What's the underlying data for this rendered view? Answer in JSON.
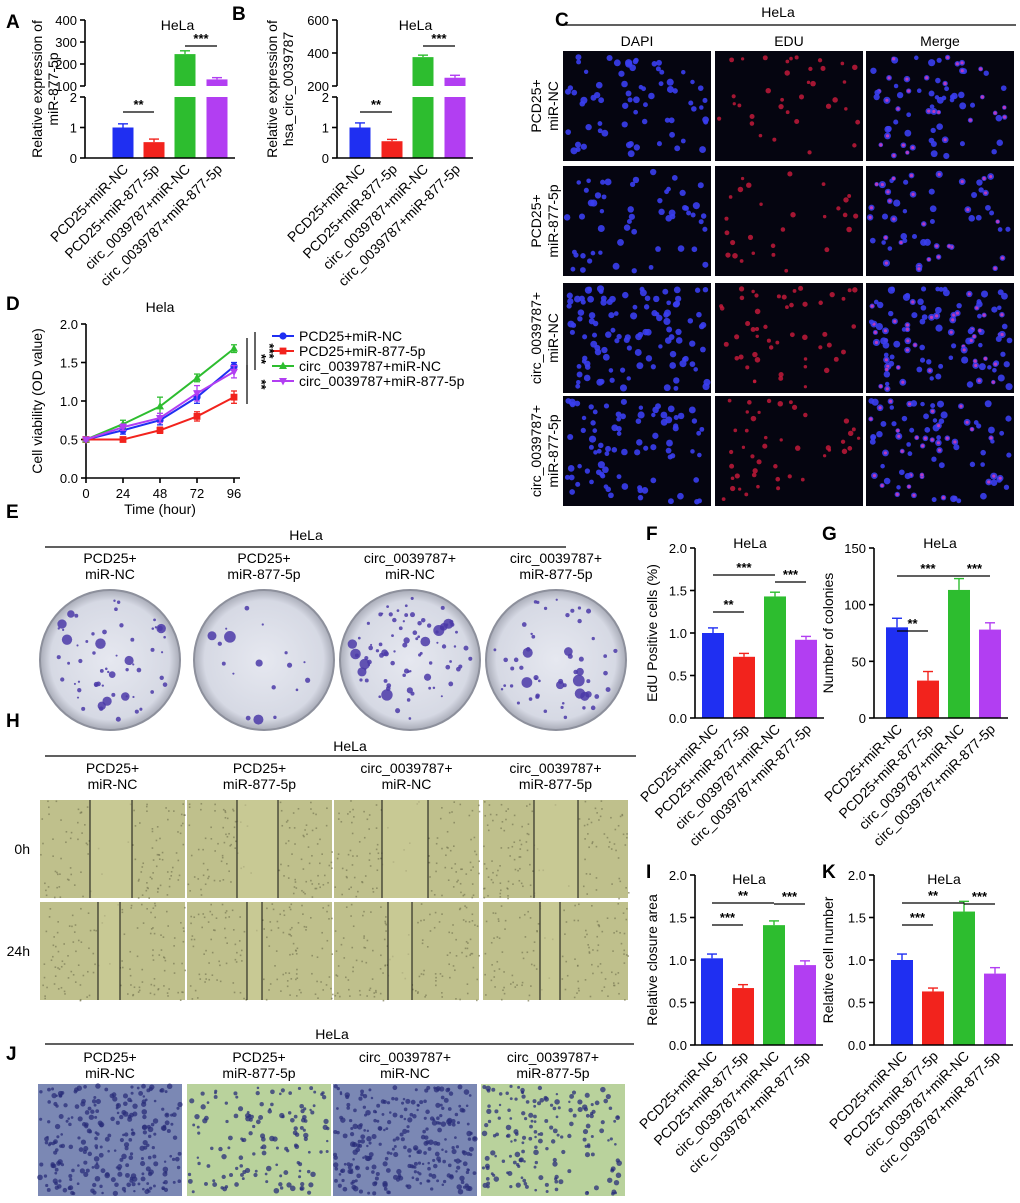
{
  "colors": {
    "blue": "#1f2ff2",
    "red": "#f2231d",
    "green": "#2dbd2f",
    "purple": "#b23ef2"
  },
  "groups": [
    "PCD25+miR-NC",
    "PCD25+miR-877-5p",
    "circ_0039787+miR-NC",
    "circ_0039787+miR-877-5p"
  ],
  "panel_labels": {
    "A": "A",
    "B": "B",
    "C": "C",
    "D": "D",
    "E": "E",
    "F": "F",
    "G": "G",
    "H": "H",
    "I": "I",
    "J": "J",
    "K": "K"
  },
  "images": {
    "C": {
      "title": "HeLa",
      "columns": [
        "DAPI",
        "EDU",
        "Merge"
      ],
      "rows": [
        "PCD25+\nmiR-NC",
        "PCD25+\nmiR-877-5p",
        "circ_0039787+\nmiR-NC",
        "circ_0039787+\nmiR-877-5p"
      ]
    },
    "E": {
      "title": "HeLa",
      "columns": [
        "PCD25+\nmiR-NC",
        "PCD25+\nmiR-877-5p",
        "circ_0039787+\nmiR-NC",
        "circ_0039787+\nmiR-877-5p"
      ]
    },
    "H": {
      "title": "HeLa",
      "columns": [
        "PCD25+\nmiR-NC",
        "PCD25+\nmiR-877-5p",
        "circ_0039787+\nmiR-NC",
        "circ_0039787+\nmiR-877-5p"
      ],
      "rows": [
        "0h",
        "24h"
      ]
    },
    "J": {
      "title": "HeLa",
      "columns": [
        "PCD25+\nmiR-NC",
        "PCD25+\nmiR-877-5p",
        "circ_0039787+\nmiR-NC",
        "circ_0039787+\nmiR-877-5p"
      ]
    }
  },
  "chart_data": [
    {
      "id": "A",
      "type": "bar",
      "title": "HeLa",
      "ylabel": "Relative expression of\nmiR-877-5p",
      "categories": [
        "PCD25+miR-NC",
        "PCD25+miR-877-5p",
        "circ_0039787+miR-NC",
        "circ_0039787+miR-877-5p"
      ],
      "values": [
        1.0,
        0.52,
        245,
        130
      ],
      "errors": [
        0.12,
        0.1,
        15,
        8
      ],
      "broken_axis": {
        "lower": [
          0,
          2
        ],
        "upper": [
          100,
          400
        ]
      },
      "yticks_lower": [
        "0",
        "1",
        "2"
      ],
      "yticks_upper": [
        "100",
        "200",
        "300",
        "400"
      ],
      "significance": [
        "**",
        "***"
      ]
    },
    {
      "id": "B",
      "type": "bar",
      "title": "HeLa",
      "ylabel": "Relative expression of\nhsa_circ_0039787",
      "categories": [
        "PCD25+miR-NC",
        "PCD25+miR-877-5p",
        "circ_0039787+miR-NC",
        "circ_0039787+miR-877-5p"
      ],
      "values": [
        1.0,
        0.55,
        375,
        250
      ],
      "errors": [
        0.15,
        0.06,
        12,
        15
      ],
      "broken_axis": {
        "lower": [
          0,
          2
        ],
        "upper": [
          200,
          600
        ]
      },
      "yticks_lower": [
        "0",
        "1",
        "2"
      ],
      "yticks_upper": [
        "200",
        "400",
        "600"
      ],
      "significance": [
        "**",
        "***"
      ]
    },
    {
      "id": "D",
      "type": "line",
      "title": "Hela",
      "xlabel": "Time (hour)",
      "ylabel": "Cell viability (OD value)",
      "x": [
        0,
        24,
        48,
        72,
        96
      ],
      "xticks": [
        "0",
        "24",
        "48",
        "72",
        "96"
      ],
      "ylim": [
        0,
        2.0
      ],
      "yticks": [
        "0.0",
        "0.5",
        "1.0",
        "1.5",
        "2.0"
      ],
      "series": [
        {
          "name": "PCD25+miR-NC",
          "values": [
            0.5,
            0.62,
            0.75,
            1.05,
            1.45
          ],
          "errors": [
            0.02,
            0.05,
            0.06,
            0.08,
            0.05
          ]
        },
        {
          "name": "PCD25+miR-877-5p",
          "values": [
            0.5,
            0.5,
            0.62,
            0.8,
            1.05
          ],
          "errors": [
            0.02,
            0.03,
            0.04,
            0.06,
            0.08
          ]
        },
        {
          "name": "circ_0039787+miR-NC",
          "values": [
            0.5,
            0.7,
            0.93,
            1.3,
            1.68
          ],
          "errors": [
            0.02,
            0.05,
            0.12,
            0.05,
            0.05
          ]
        },
        {
          "name": "circ_0039787+miR-877-5p",
          "values": [
            0.5,
            0.66,
            0.78,
            1.1,
            1.38
          ],
          "errors": [
            0.02,
            0.04,
            0.06,
            0.1,
            0.08
          ]
        }
      ],
      "significance": [
        "**",
        "***",
        "**"
      ]
    },
    {
      "id": "F",
      "type": "bar",
      "title": "HeLa",
      "ylabel": "EdU Positive cells (%)",
      "categories": [
        "PCD25+miR-NC",
        "PCD25+miR-877-5p",
        "circ_0039787+miR-NC",
        "circ_0039787+miR-877-5p"
      ],
      "values": [
        1.0,
        0.72,
        1.43,
        0.92
      ],
      "errors": [
        0.06,
        0.04,
        0.05,
        0.04
      ],
      "ylim": [
        0,
        2.0
      ],
      "yticks": [
        "0.0",
        "0.5",
        "1.0",
        "1.5",
        "2.0"
      ],
      "significance": [
        "**",
        "***",
        "***"
      ]
    },
    {
      "id": "G",
      "type": "bar",
      "title": "HeLa",
      "ylabel": "Number of colonies",
      "categories": [
        "PCD25+miR-NC",
        "PCD25+miR-877-5p",
        "circ_0039787+miR-NC",
        "circ_0039787+miR-877-5p"
      ],
      "values": [
        80,
        33,
        113,
        78
      ],
      "errors": [
        8,
        8,
        10,
        6
      ],
      "ylim": [
        0,
        150
      ],
      "yticks": [
        "0",
        "50",
        "100",
        "150"
      ],
      "significance": [
        "**",
        "***",
        "***"
      ]
    },
    {
      "id": "I",
      "type": "bar",
      "title": "HeLa",
      "ylabel": "Relative closure area",
      "categories": [
        "PCD25+miR-NC",
        "PCD25+miR-877-5p",
        "circ_0039787+miR-NC",
        "circ_0039787+miR-877-5p"
      ],
      "values": [
        1.02,
        0.67,
        1.41,
        0.94
      ],
      "errors": [
        0.05,
        0.04,
        0.05,
        0.05
      ],
      "ylim": [
        0,
        2.0
      ],
      "yticks": [
        "0.0",
        "0.5",
        "1.0",
        "1.5",
        "2.0"
      ],
      "significance": [
        "***",
        "**",
        "***"
      ]
    },
    {
      "id": "K",
      "type": "bar",
      "title": "HeLa",
      "ylabel": "Relative cell number",
      "categories": [
        "PCD25+miR-NC",
        "PCD25+miR-877-5p",
        "circ_0039787+miR-NC",
        "circ_0039787+miR-877-5p"
      ],
      "values": [
        1.0,
        0.63,
        1.57,
        0.84
      ],
      "errors": [
        0.07,
        0.04,
        0.12,
        0.07
      ],
      "ylim": [
        0,
        2.0
      ],
      "yticks": [
        "0.0",
        "0.5",
        "1.0",
        "1.5",
        "2.0"
      ],
      "significance": [
        "***",
        "**",
        "***"
      ]
    }
  ]
}
